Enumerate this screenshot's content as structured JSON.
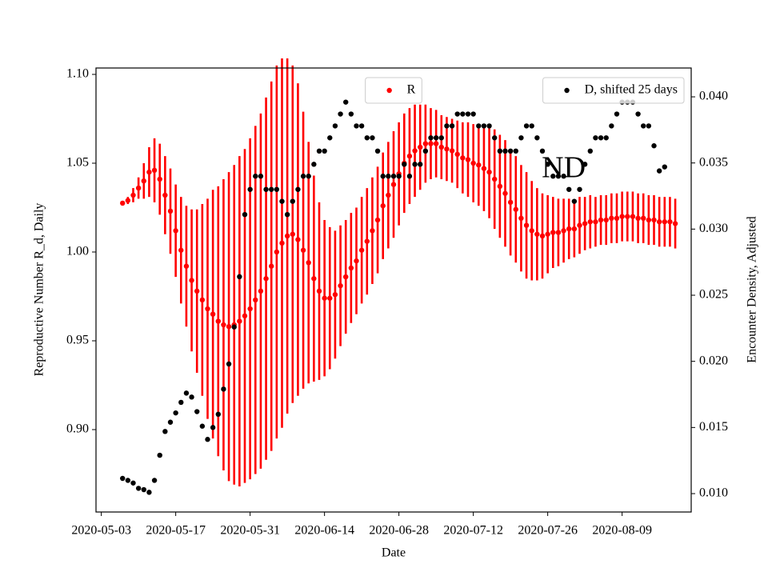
{
  "chart_data": {
    "type": "scatter",
    "xlabel": "Date",
    "ylabel": "Reproductive Number R_d, Daily",
    "y2label": "Encounter Density, Adjusted",
    "x": [
      "2020-05-07",
      "2020-05-08",
      "2020-05-09",
      "2020-05-10",
      "2020-05-11",
      "2020-05-12",
      "2020-05-13",
      "2020-05-14",
      "2020-05-15",
      "2020-05-16",
      "2020-05-17",
      "2020-05-18",
      "2020-05-19",
      "2020-05-20",
      "2020-05-21",
      "2020-05-22",
      "2020-05-23",
      "2020-05-24",
      "2020-05-25",
      "2020-05-26",
      "2020-05-27",
      "2020-05-28",
      "2020-05-29",
      "2020-05-30",
      "2020-05-31",
      "2020-06-01",
      "2020-06-02",
      "2020-06-03",
      "2020-06-04",
      "2020-06-05",
      "2020-06-06",
      "2020-06-07",
      "2020-06-08",
      "2020-06-09",
      "2020-06-10",
      "2020-06-11",
      "2020-06-12",
      "2020-06-13",
      "2020-06-14",
      "2020-06-15",
      "2020-06-16",
      "2020-06-17",
      "2020-06-18",
      "2020-06-19",
      "2020-06-20",
      "2020-06-21",
      "2020-06-22",
      "2020-06-23",
      "2020-06-24",
      "2020-06-25",
      "2020-06-26",
      "2020-06-27",
      "2020-06-28",
      "2020-06-29",
      "2020-06-30",
      "2020-07-01",
      "2020-07-02",
      "2020-07-03",
      "2020-07-04",
      "2020-07-05",
      "2020-07-06",
      "2020-07-07",
      "2020-07-08",
      "2020-07-09",
      "2020-07-10",
      "2020-07-11",
      "2020-07-12",
      "2020-07-13",
      "2020-07-14",
      "2020-07-15",
      "2020-07-16",
      "2020-07-17",
      "2020-07-18",
      "2020-07-19",
      "2020-07-20",
      "2020-07-21",
      "2020-07-22",
      "2020-07-23",
      "2020-07-24",
      "2020-07-25",
      "2020-07-26",
      "2020-07-27",
      "2020-07-28",
      "2020-07-29",
      "2020-07-30",
      "2020-07-31",
      "2020-08-01",
      "2020-08-02",
      "2020-08-03",
      "2020-08-04",
      "2020-08-05",
      "2020-08-06",
      "2020-08-07",
      "2020-08-08",
      "2020-08-09",
      "2020-08-10",
      "2020-08-11",
      "2020-08-12",
      "2020-08-13",
      "2020-08-14",
      "2020-08-15",
      "2020-08-16",
      "2020-08-17",
      "2020-08-18",
      "2020-08-19"
    ],
    "xlim": [
      "2020-05-02",
      "2020-08-22"
    ],
    "xticks": [
      "2020-05-03",
      "2020-05-17",
      "2020-05-31",
      "2020-06-14",
      "2020-06-28",
      "2020-07-12",
      "2020-07-26",
      "2020-08-09"
    ],
    "ylim": [
      0.8536,
      1.1036
    ],
    "yticks": [
      {
        "value": 0.9,
        "label": "0.90"
      },
      {
        "value": 0.95,
        "label": "0.95"
      },
      {
        "value": 1.0,
        "label": "1.00"
      },
      {
        "value": 1.05,
        "label": "1.05"
      },
      {
        "value": 1.1,
        "label": "1.10"
      }
    ],
    "y2lim": [
      0.00861,
      0.04218
    ],
    "y2ticks": [
      {
        "value": 0.01,
        "label": "0.010"
      },
      {
        "value": 0.015,
        "label": "0.015"
      },
      {
        "value": 0.02,
        "label": "0.020"
      },
      {
        "value": 0.025,
        "label": "0.025"
      },
      {
        "value": 0.03,
        "label": "0.030"
      },
      {
        "value": 0.035,
        "label": "0.035"
      },
      {
        "value": 0.04,
        "label": "0.040"
      }
    ],
    "ylabel_color": "#ff0000",
    "annotations": [
      {
        "text": "ND",
        "x": "2020-07-29",
        "y": 1.046
      }
    ],
    "series": [
      {
        "name": "R",
        "color": "#ff0000",
        "legend": "upper center",
        "values": [
          1.0275,
          1.029,
          1.032,
          1.036,
          1.04,
          1.045,
          1.046,
          1.041,
          1.032,
          1.023,
          1.012,
          1.001,
          0.992,
          0.984,
          0.978,
          0.973,
          0.968,
          0.965,
          0.961,
          0.959,
          0.958,
          0.959,
          0.961,
          0.964,
          0.968,
          0.973,
          0.978,
          0.985,
          0.992,
          1.0,
          1.005,
          1.009,
          1.01,
          1.007,
          1.001,
          0.994,
          0.985,
          0.978,
          0.974,
          0.974,
          0.976,
          0.981,
          0.986,
          0.991,
          0.995,
          1.001,
          1.006,
          1.012,
          1.018,
          1.026,
          1.032,
          1.038,
          1.044,
          1.05,
          1.054,
          1.057,
          1.059,
          1.061,
          1.061,
          1.061,
          1.059,
          1.058,
          1.057,
          1.055,
          1.053,
          1.052,
          1.05,
          1.049,
          1.047,
          1.045,
          1.041,
          1.037,
          1.033,
          1.028,
          1.024,
          1.019,
          1.015,
          1.012,
          1.01,
          1.009,
          1.01,
          1.011,
          1.011,
          1.012,
          1.013,
          1.013,
          1.015,
          1.016,
          1.017,
          1.017,
          1.018,
          1.018,
          1.019,
          1.019,
          1.02,
          1.02,
          1.02,
          1.019,
          1.019,
          1.018,
          1.018,
          1.017,
          1.017,
          1.017,
          1.016
        ],
        "errors": [
          0.001,
          0.002,
          0.004,
          0.006,
          0.01,
          0.014,
          0.018,
          0.02,
          0.022,
          0.024,
          0.026,
          0.03,
          0.034,
          0.04,
          0.046,
          0.054,
          0.062,
          0.07,
          0.076,
          0.082,
          0.087,
          0.09,
          0.093,
          0.094,
          0.096,
          0.098,
          0.1,
          0.102,
          0.104,
          0.105,
          0.104,
          0.1,
          0.095,
          0.088,
          0.078,
          0.068,
          0.058,
          0.05,
          0.044,
          0.04,
          0.036,
          0.034,
          0.032,
          0.031,
          0.03,
          0.03,
          0.03,
          0.03,
          0.03,
          0.03,
          0.03,
          0.03,
          0.029,
          0.028,
          0.027,
          0.026,
          0.024,
          0.022,
          0.02,
          0.019,
          0.018,
          0.018,
          0.018,
          0.019,
          0.02,
          0.021,
          0.022,
          0.023,
          0.024,
          0.026,
          0.028,
          0.029,
          0.03,
          0.03,
          0.03,
          0.03,
          0.03,
          0.028,
          0.026,
          0.024,
          0.022,
          0.02,
          0.019,
          0.018,
          0.017,
          0.016,
          0.016,
          0.015,
          0.015,
          0.014,
          0.014,
          0.014,
          0.014,
          0.014,
          0.014,
          0.014,
          0.014,
          0.014,
          0.014,
          0.014,
          0.014,
          0.014,
          0.014,
          0.014,
          0.014
        ]
      },
      {
        "name": "D, shifted 25 days",
        "color": "#000000",
        "axis": "y2",
        "legend": "upper right",
        "values": [
          0.01115,
          0.011,
          0.0108,
          0.0104,
          0.0103,
          0.0101,
          0.011,
          0.0129,
          0.0147,
          0.0154,
          0.0161,
          0.0169,
          0.0176,
          0.0173,
          0.0162,
          0.0151,
          0.0141,
          0.015,
          0.016,
          0.0179,
          0.0198,
          0.0226,
          0.0264,
          0.0311,
          0.033,
          0.034,
          0.034,
          0.033,
          0.033,
          0.033,
          0.0321,
          0.0311,
          0.0321,
          0.033,
          0.034,
          0.034,
          0.0349,
          0.0359,
          0.0359,
          0.0369,
          0.0378,
          0.0387,
          0.0396,
          0.0387,
          0.0378,
          0.0378,
          0.0369,
          0.0369,
          0.0359,
          0.034,
          0.034,
          0.034,
          0.034,
          0.0349,
          0.034,
          0.0349,
          0.0349,
          0.0359,
          0.0369,
          0.0369,
          0.0369,
          0.0378,
          0.0378,
          0.0387,
          0.0387,
          0.0387,
          0.0387,
          0.0378,
          0.0378,
          0.0378,
          0.0369,
          0.0359,
          0.0359,
          0.0359,
          0.0359,
          0.0369,
          0.0378,
          0.0378,
          0.0369,
          0.0359,
          0.0349,
          0.034,
          0.034,
          0.034,
          0.033,
          0.0321,
          0.033,
          0.0349,
          0.0359,
          0.0369,
          0.0369,
          0.0369,
          0.0378,
          0.0387,
          0.0396,
          0.0396,
          0.0396,
          0.0387,
          0.0378,
          0.0378,
          0.0363,
          0.0344,
          0.0347,
          null,
          null
        ]
      }
    ]
  }
}
